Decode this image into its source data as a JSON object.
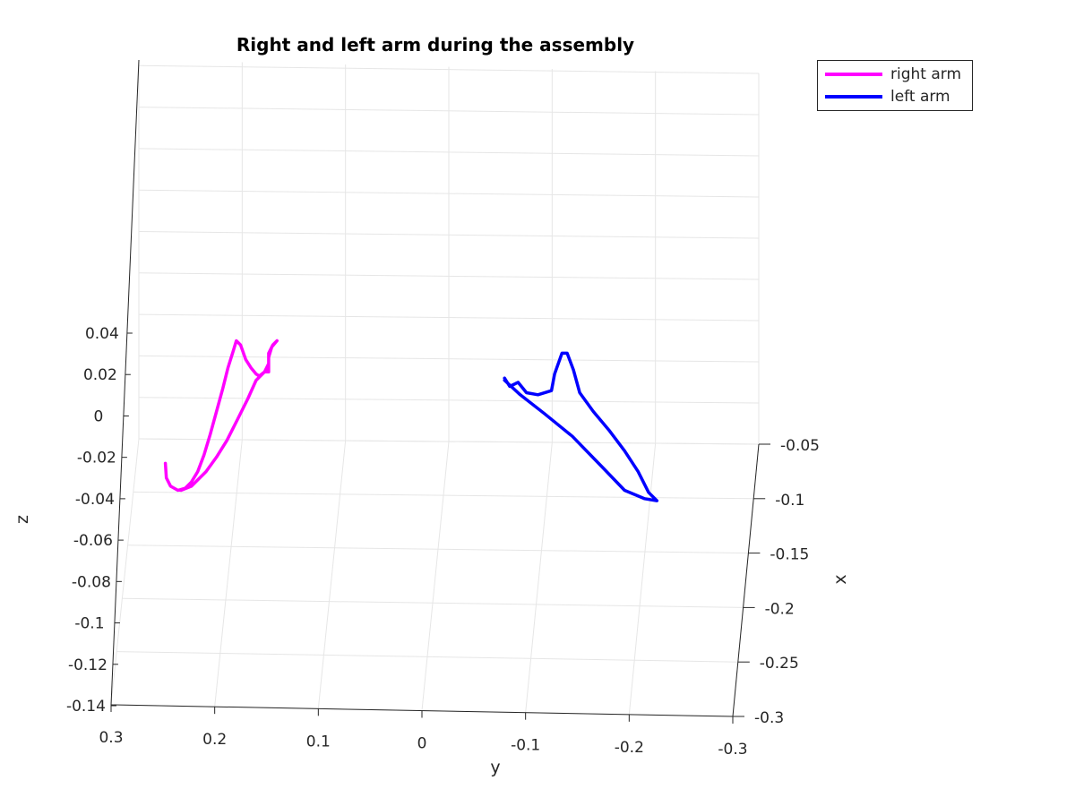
{
  "chart_data": {
    "type": "line",
    "title": "Right and left arm during the assembly",
    "xlabel": "y",
    "ylabel": "z",
    "zlabel": "x",
    "y_ticks": [
      "0.3",
      "0.2",
      "0.1",
      "0",
      "-0.1",
      "-0.2",
      "-0.3"
    ],
    "y_tick_values": [
      0.3,
      0.2,
      0.1,
      0,
      -0.1,
      -0.2,
      -0.3
    ],
    "z_ticks": [
      "0.04",
      "0.02",
      "0",
      "-0.02",
      "-0.04",
      "-0.06",
      "-0.08",
      "-0.1",
      "-0.12",
      "-0.14"
    ],
    "z_tick_values": [
      0.04,
      0.02,
      0,
      -0.02,
      -0.04,
      -0.06,
      -0.08,
      -0.1,
      -0.12,
      -0.14
    ],
    "x_ticks": [
      "-0.05",
      "-0.1",
      "-0.15",
      "-0.2",
      "-0.25",
      "-0.3"
    ],
    "x_tick_values": [
      -0.05,
      -0.1,
      -0.15,
      -0.2,
      -0.25,
      -0.3
    ],
    "grid": true,
    "legend_position": "top-right",
    "series": [
      {
        "name": "right arm",
        "color": "#ff00ff",
        "points": [
          [
            0.245,
            -0.023
          ],
          [
            0.244,
            -0.03
          ],
          [
            0.24,
            -0.034
          ],
          [
            0.233,
            -0.036
          ],
          [
            0.226,
            -0.035
          ],
          [
            0.22,
            -0.032
          ],
          [
            0.214,
            -0.027
          ],
          [
            0.208,
            -0.019
          ],
          [
            0.202,
            -0.009
          ],
          [
            0.196,
            0.002
          ],
          [
            0.19,
            0.013
          ],
          [
            0.185,
            0.023
          ],
          [
            0.18,
            0.031
          ],
          [
            0.177,
            0.036
          ],
          [
            0.173,
            0.034
          ],
          [
            0.168,
            0.027
          ],
          [
            0.163,
            0.023
          ],
          [
            0.158,
            0.02
          ],
          [
            0.155,
            0.019
          ],
          [
            0.15,
            0.021
          ],
          [
            0.146,
            0.025
          ],
          [
            0.146,
            0.028
          ],
          [
            0.143,
            0.033
          ],
          [
            0.138,
            0.036
          ],
          [
            0.142,
            0.034
          ],
          [
            0.146,
            0.03
          ],
          [
            0.146,
            0.024
          ],
          [
            0.146,
            0.021
          ],
          [
            0.15,
            0.021
          ],
          [
            0.158,
            0.017
          ],
          [
            0.166,
            0.008
          ],
          [
            0.176,
            -0.002
          ],
          [
            0.186,
            -0.012
          ],
          [
            0.196,
            -0.02
          ],
          [
            0.206,
            -0.027
          ],
          [
            0.214,
            -0.031
          ],
          [
            0.22,
            -0.034
          ],
          [
            0.23,
            -0.036
          ]
        ]
      },
      {
        "name": "left arm",
        "color": "#0000ff",
        "points": [
          [
            -0.08,
            0.018
          ],
          [
            -0.085,
            0.014
          ],
          [
            -0.093,
            0.016
          ],
          [
            -0.101,
            0.011
          ],
          [
            -0.112,
            0.01
          ],
          [
            -0.125,
            0.012
          ],
          [
            -0.128,
            0.02
          ],
          [
            -0.135,
            0.03
          ],
          [
            -0.14,
            0.03
          ],
          [
            -0.146,
            0.022
          ],
          [
            -0.152,
            0.011
          ],
          [
            -0.165,
            0.002
          ],
          [
            -0.18,
            -0.007
          ],
          [
            -0.195,
            -0.017
          ],
          [
            -0.208,
            -0.027
          ],
          [
            -0.218,
            -0.037
          ],
          [
            -0.226,
            -0.041
          ],
          [
            -0.214,
            -0.04
          ],
          [
            -0.195,
            -0.036
          ],
          [
            -0.174,
            -0.025
          ],
          [
            -0.145,
            -0.01
          ],
          [
            -0.118,
            0.001
          ],
          [
            -0.095,
            0.01
          ],
          [
            -0.08,
            0.017
          ]
        ]
      }
    ]
  }
}
